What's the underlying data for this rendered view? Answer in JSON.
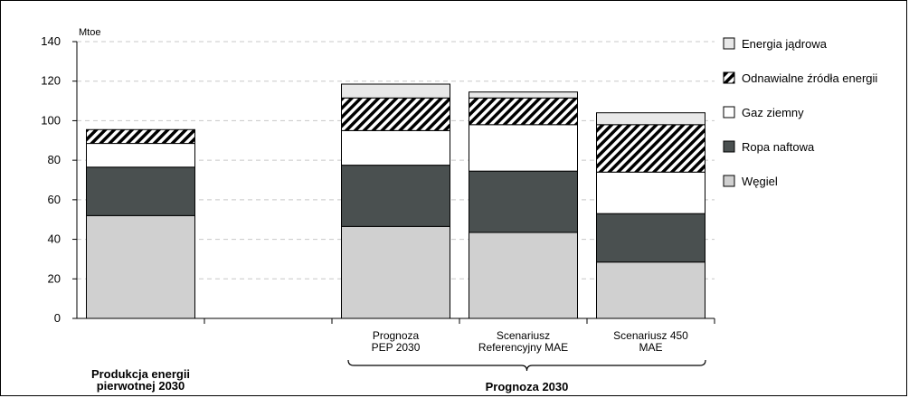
{
  "chart_data": {
    "type": "bar",
    "stacked": true,
    "ylabel": "Mtoe",
    "ylim": [
      0,
      140
    ],
    "yticks": [
      0,
      20,
      40,
      60,
      80,
      100,
      120,
      140
    ],
    "grid": "horizontal dashed",
    "legend_position": "right",
    "categories": [
      [
        "Produkcja energii",
        "pierwotnej 2030"
      ],
      [
        "Prognoza",
        "PEP 2030"
      ],
      [
        "Scenariusz",
        "Referencyjny MAE"
      ],
      [
        "Scenariusz 450",
        "MAE"
      ]
    ],
    "group_label": "Prognoza 2030",
    "series": [
      {
        "name": "Węgiel",
        "color": "#d0d0d0",
        "values": [
          52,
          46.5,
          43.5,
          28.5
        ]
      },
      {
        "name": "Ropa naftowa",
        "color": "#4a5050",
        "values": [
          24.5,
          31,
          31,
          24.5
        ]
      },
      {
        "name": "Gaz ziemny",
        "color": "#ffffff",
        "values": [
          12,
          17.5,
          23.5,
          21
        ]
      },
      {
        "name": "Odnawialne źródła energii",
        "color": "hatch",
        "values": [
          7,
          16.5,
          13.5,
          24
        ]
      },
      {
        "name": "Energia jądrowa",
        "color": "#e8e8e8",
        "values": [
          0,
          7,
          3,
          6
        ]
      }
    ]
  }
}
